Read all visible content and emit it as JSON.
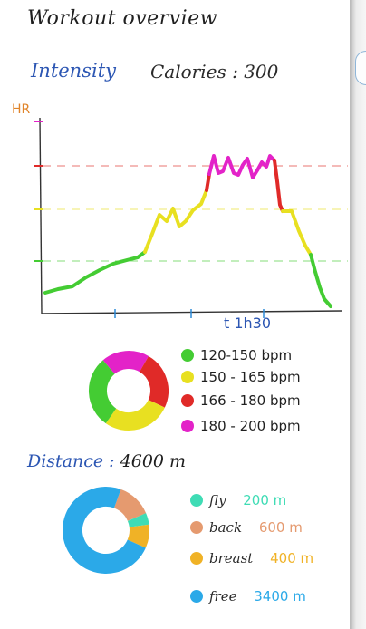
{
  "title": "Workout overview",
  "intensity": {
    "label": "Intensity",
    "calories_label": "Calories :",
    "calories_value": "300"
  },
  "chart_data": {
    "type": "line",
    "ylabel": "HR",
    "xlabel": "t 1h30",
    "zones": [
      {
        "color": "#44cc33",
        "range": "120-150 bpm"
      },
      {
        "color": "#e8e021",
        "range": "150 - 165 bpm"
      },
      {
        "color": "#e02a28",
        "range": "166 - 180 bpm"
      },
      {
        "color": "#e323c8",
        "range": "180 - 200 bpm"
      }
    ]
  },
  "hr_zones_legend": [
    {
      "label": "120-150 bpm",
      "color": "#44cc33"
    },
    {
      "label": "150 - 165 bpm",
      "color": "#e8e021"
    },
    {
      "label": "166 - 180 bpm",
      "color": "#e02a28"
    },
    {
      "label": "180 - 200 bpm",
      "color": "#e323c8"
    }
  ],
  "distance": {
    "label": "Distance :",
    "value": "4600 m",
    "strokes": [
      {
        "name": "fly",
        "value": "200 m",
        "color": "#3fdcb5"
      },
      {
        "name": "back",
        "value": "600 m",
        "color": "#e59a6f"
      },
      {
        "name": "breast",
        "value": "400 m",
        "color": "#f0b226"
      },
      {
        "name": "free",
        "value": "3400 m",
        "color": "#2ba9e8"
      }
    ]
  },
  "icons": {
    "legend_dot": "filled-circle"
  }
}
